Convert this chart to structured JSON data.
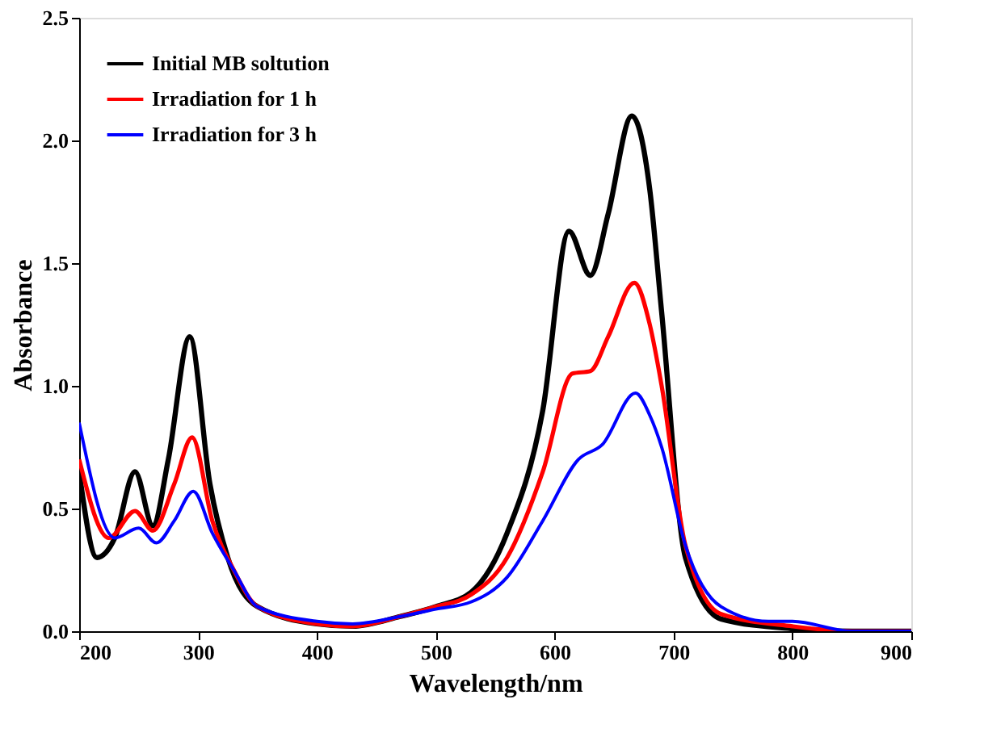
{
  "chart_data": {
    "type": "line",
    "xlabel": "Wavelength/nm",
    "ylabel": "Absorbance",
    "xlim": [
      200,
      900
    ],
    "ylim": [
      0,
      2.5
    ],
    "xticks": [
      200,
      300,
      400,
      500,
      600,
      700,
      800,
      900
    ],
    "yticks": [
      {
        "value": 0,
        "label": "0.0"
      },
      0.5,
      {
        "value": 1,
        "label": "1.0"
      },
      1.5,
      {
        "value": 2,
        "label": "2.0"
      },
      2.5
    ],
    "grid": false,
    "legend": "top left",
    "marker": "none",
    "line_style": "solid",
    "series": [
      {
        "name": "Initial MB soltution",
        "color": "#000000",
        "x": [
          200,
          215,
          230,
          247,
          262,
          275,
          293,
          310,
          325,
          350,
          400,
          430,
          470,
          500,
          530,
          560,
          590,
          612,
          630,
          645,
          665,
          680,
          690,
          710,
          740,
          800,
          850,
          900
        ],
        "values": [
          0.65,
          0.3,
          0.38,
          0.65,
          0.43,
          0.7,
          1.2,
          0.6,
          0.3,
          0.1,
          0.03,
          0.02,
          0.06,
          0.1,
          0.16,
          0.4,
          0.9,
          1.63,
          1.45,
          1.7,
          2.1,
          1.8,
          1.3,
          0.3,
          0.05,
          0.01,
          0,
          0
        ]
      },
      {
        "name": "Irradiation for 1 h",
        "color": "#ff0000",
        "x": [
          200,
          225,
          247,
          262,
          280,
          295,
          312,
          330,
          350,
          400,
          430,
          470,
          500,
          530,
          560,
          590,
          615,
          630,
          645,
          667,
          680,
          690,
          710,
          740,
          800,
          850,
          900
        ],
        "values": [
          0.7,
          0.38,
          0.49,
          0.41,
          0.6,
          0.79,
          0.45,
          0.25,
          0.1,
          0.03,
          0.02,
          0.06,
          0.1,
          0.15,
          0.3,
          0.65,
          1.05,
          1.06,
          1.2,
          1.42,
          1.25,
          1.0,
          0.35,
          0.07,
          0.02,
          0,
          0
        ]
      },
      {
        "name": "Irradiation for 3 h",
        "color": "#0000ff",
        "x": [
          200,
          230,
          250,
          265,
          280,
          296,
          312,
          330,
          350,
          400,
          430,
          470,
          500,
          530,
          560,
          590,
          620,
          640,
          668,
          680,
          690,
          710,
          740,
          780,
          800,
          850,
          900
        ],
        "values": [
          0.85,
          0.38,
          0.42,
          0.36,
          0.45,
          0.57,
          0.4,
          0.25,
          0.1,
          0.04,
          0.03,
          0.06,
          0.09,
          0.12,
          0.22,
          0.45,
          0.7,
          0.76,
          0.97,
          0.88,
          0.75,
          0.35,
          0.1,
          0.04,
          0.04,
          0,
          0
        ]
      }
    ]
  }
}
